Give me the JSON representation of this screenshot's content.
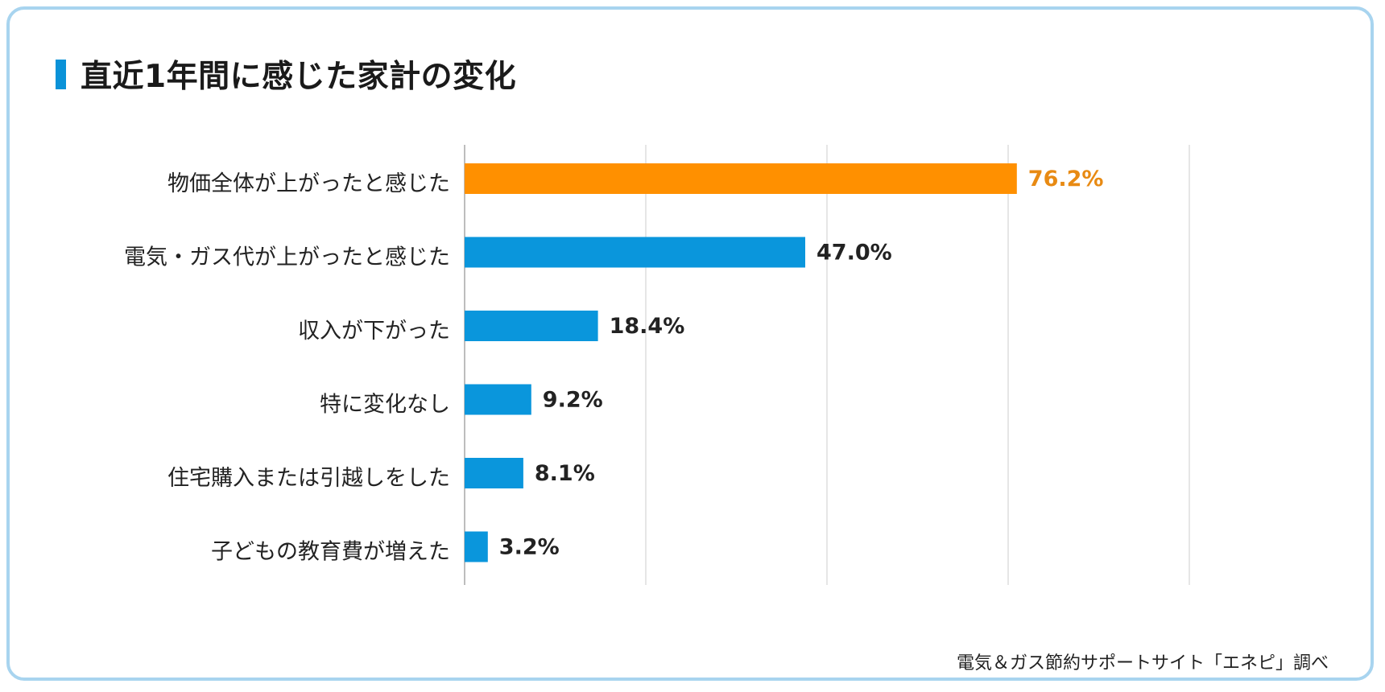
{
  "title": "直近1年間に感じた家計の変化",
  "source": "電気＆ガス節約サポートサイト「エネピ」調べ",
  "colors": {
    "highlight": "#ff9000",
    "highlight_text": "#e88a13",
    "bar": "#0a96dc",
    "value_text": "#222222",
    "grid": "#e6e6e6",
    "axis": "#bdbdbd",
    "border": "#a8d4ef"
  },
  "chart_data": {
    "type": "bar",
    "orientation": "horizontal",
    "title": "直近1年間に感じた家計の変化",
    "categories": [
      "物価全体が上がったと感じた",
      "電気・ガス代が上がったと感じた",
      "収入が下がった",
      "特に変化なし",
      "住宅購入または引越しをした",
      "子どもの教育費が増えた"
    ],
    "values": [
      76.2,
      47.0,
      18.4,
      9.2,
      8.1,
      3.2
    ],
    "value_labels": [
      "76.2%",
      "47.0%",
      "18.4%",
      "9.2%",
      "8.1%",
      "3.2%"
    ],
    "highlight_index": 0,
    "xlim": [
      0,
      100
    ],
    "grid": true,
    "unit": "%"
  }
}
